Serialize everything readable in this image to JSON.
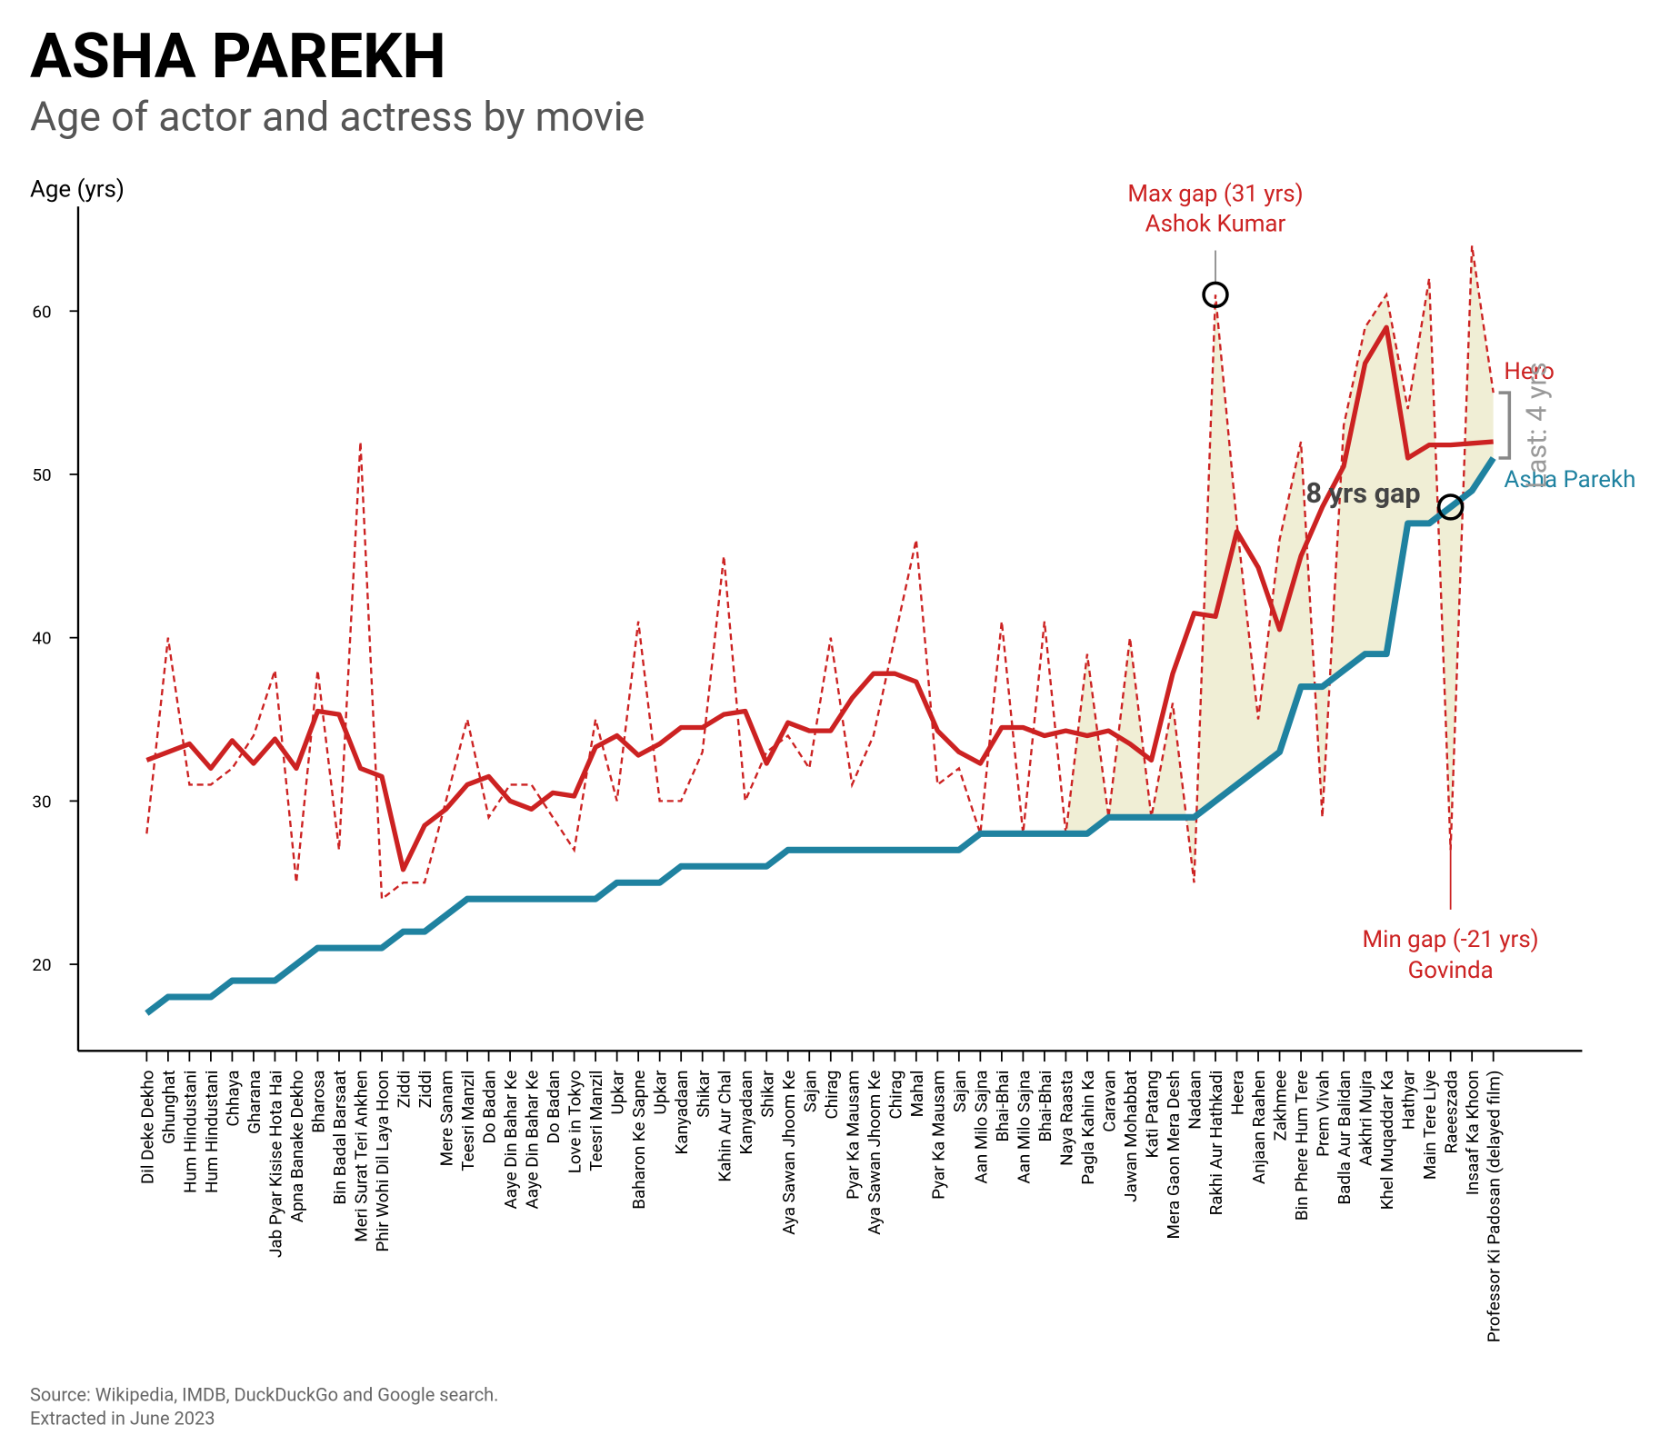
{
  "chart_data": {
    "type": "line",
    "title": "ASHA PAREKH",
    "subtitle": "Age of actor and actress by movie",
    "y_label": "Age (yrs)",
    "source": [
      "Source: Wikipedia, IMDB, DuckDuckGo and Google search.",
      "Extracted in June 2023"
    ],
    "categories": [
      "Dil Deke Dekho",
      "Ghunghat",
      "Hum Hindustani",
      "Hum Hindustani",
      "Chhaya",
      "Gharana",
      "Jab Pyar Kisise Hota Hai",
      "Apna Banake Dekho",
      "Bharosa",
      "Bin Badal Barsaat",
      "Meri Surat Teri Ankhen",
      "Phir Wohi Dil Laya Hoon",
      "Ziddi",
      "Ziddi",
      "Mere Sanam",
      "Teesri Manzil",
      "Do Badan",
      "Aaye Din Bahar Ke",
      "Aaye Din Bahar Ke",
      "Do Badan",
      "Love in Tokyo",
      "Teesri Manzil",
      "Upkar",
      "Baharon Ke Sapne",
      "Upkar",
      "Kanyadaan",
      "Shikar",
      "Kahin Aur Chal",
      "Kanyadaan",
      "Shikar",
      "Aya Sawan Jhoom Ke",
      "Sajan",
      "Chirag",
      "Pyar Ka Mausam",
      "Aya Sawan Jhoom Ke",
      "Chirag",
      "Mahal",
      "Pyar Ka Mausam",
      "Sajan",
      "Aan Milo Sajna",
      "Bhai-Bhai",
      "Aan Milo Sajna",
      "Bhai-Bhai",
      "Naya Raasta",
      "Pagla Kahin Ka",
      "Caravan",
      "Jawan Mohabbat",
      "Kati Patang",
      "Mera Gaon Mera Desh",
      "Nadaan",
      "Rakhi Aur Hathkadi",
      "Heera",
      "Anjaan Raahen",
      "Zakhmee",
      "Bin Phere Hum Tere",
      "Prem Vivah",
      "Badla Aur Balidan",
      "Aakhri Mujra",
      "Khel Muqaddar Ka",
      "Hathyar",
      "Main Tere Liye",
      "Raeeszada",
      "Insaaf Ka Khoon",
      "Professor Ki Padosan (delayed film)"
    ],
    "series": [
      {
        "name": "Asha Parekh",
        "color": "#1f82a0",
        "values": [
          17,
          18,
          18,
          18,
          19,
          19,
          19,
          20,
          21,
          21,
          21,
          21,
          22,
          22,
          23,
          24,
          24,
          24,
          24,
          24,
          24,
          24,
          25,
          25,
          25,
          26,
          26,
          26,
          26,
          26,
          27,
          27,
          27,
          27,
          27,
          27,
          27,
          27,
          27,
          28,
          28,
          28,
          28,
          28,
          28,
          29,
          29,
          29,
          29,
          29,
          30,
          31,
          32,
          33,
          37,
          37,
          38,
          39,
          39,
          47,
          47,
          48,
          49,
          51
        ]
      },
      {
        "name": "Hero",
        "color": "#cc2222",
        "values": [
          28,
          40,
          31,
          31,
          32,
          34,
          38,
          25,
          38,
          27,
          52,
          24,
          25,
          25,
          30,
          35,
          29,
          31,
          31,
          29,
          27,
          35,
          30,
          41,
          30,
          30,
          33,
          45,
          30,
          33,
          34,
          32,
          40,
          31,
          34,
          40,
          46,
          31,
          32,
          28,
          41,
          28,
          41,
          28,
          39,
          29,
          40,
          29,
          36,
          25,
          61,
          47,
          35,
          46,
          52,
          29,
          53,
          59,
          61,
          54,
          62,
          27,
          64,
          55
        ]
      }
    ],
    "hero_trend": {
      "color": "#cc2222",
      "values": [
        32.5,
        33,
        33.5,
        32,
        33.7,
        32.3,
        33.8,
        32,
        35.5,
        35.3,
        32,
        31.5,
        25.8,
        28.5,
        29.5,
        31,
        31.5,
        30,
        29.5,
        30.5,
        30.3,
        33.3,
        34,
        32.8,
        33.5,
        34.5,
        34.5,
        35.3,
        35.5,
        32.3,
        34.8,
        34.3,
        34.3,
        36.3,
        37.8,
        37.8,
        37.3,
        34.3,
        33,
        32.3,
        34.5,
        34.5,
        34,
        34.3,
        34,
        34.3,
        33.5,
        32.5,
        37.8,
        41.5,
        41.3,
        46.5,
        44.3,
        40.5,
        45,
        48,
        50.5,
        56.8,
        59,
        51,
        51.8,
        51.8,
        51.9,
        52
      ]
    },
    "gap_fill_color": "#f0eed5",
    "ylim": [
      14.7,
      66.4
    ],
    "yticks": [
      20,
      30,
      40,
      50,
      60
    ],
    "annotations": {
      "max_gap": [
        "Max gap (31 yrs)",
        "Ashok Kumar"
      ],
      "min_gap": [
        "Min gap (-21 yrs)",
        "Govinda"
      ],
      "gap_point": "8 yrs gap",
      "last": "Last: 4 yrs"
    }
  }
}
